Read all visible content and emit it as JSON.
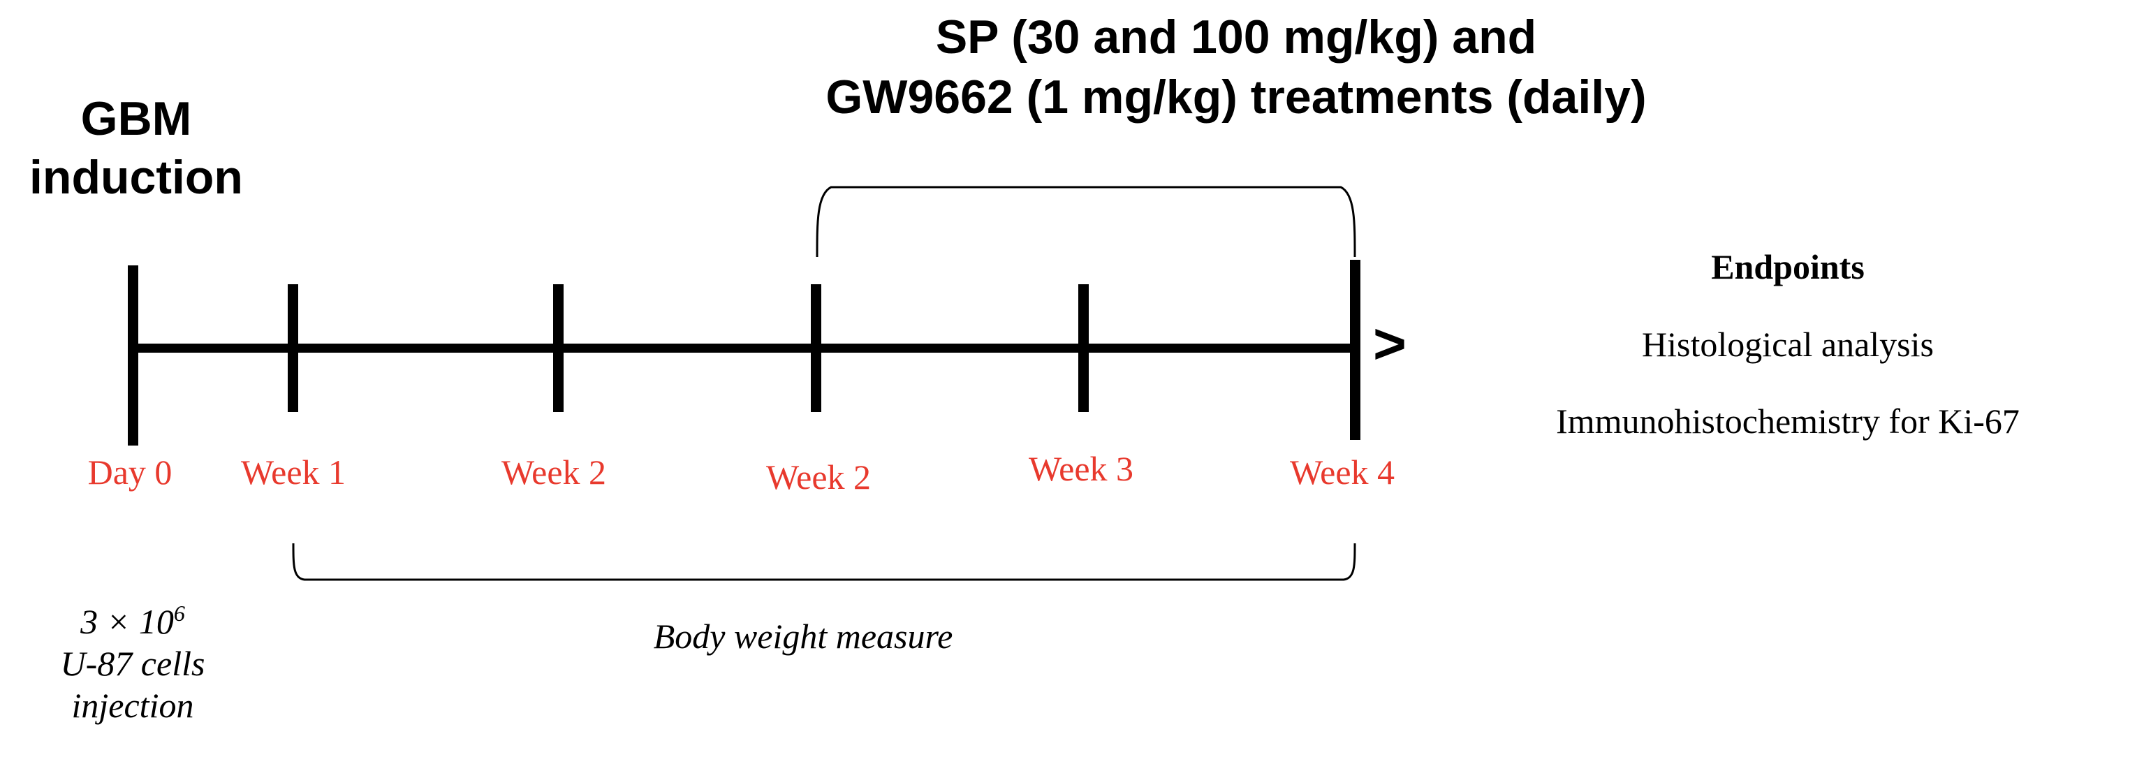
{
  "gbm": {
    "line1": "GBM",
    "line2": "induction"
  },
  "treatment": {
    "line1": "SP (30 and 100 mg/kg) and",
    "line2": "GW9662 (1 mg/kg) treatments (daily)"
  },
  "timeline": {
    "arrow": ">",
    "labels": [
      "Day 0",
      "Week 1",
      "Week 2",
      "Week 2",
      "Week 3",
      "Week 4"
    ]
  },
  "body_weight": {
    "label": "Body weight measure"
  },
  "injection": {
    "line1_base": "3 × 10",
    "line1_exp": "6",
    "line2": "U-87 cells",
    "line3": "injection"
  },
  "endpoints": {
    "title": "Endpoints",
    "items": [
      "Histological analysis",
      "Immunohistochemistry for Ki-67"
    ]
  },
  "colors": {
    "label_red": "#e8392d",
    "line_black": "#000000"
  }
}
